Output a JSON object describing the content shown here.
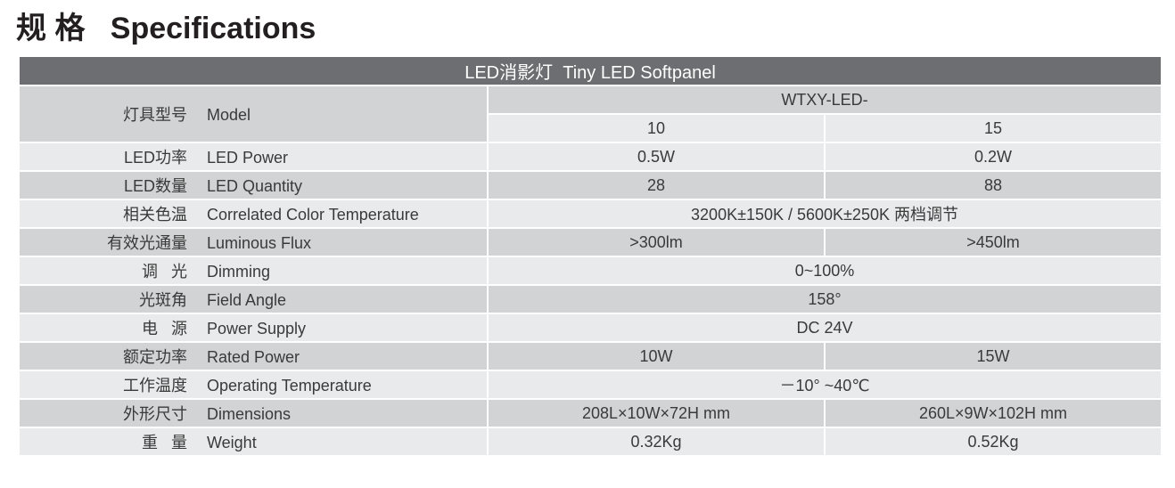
{
  "header": {
    "title": "规 格   Specifications"
  },
  "table": {
    "caption": "LED消影灯  Tiny LED Softpanel",
    "model": {
      "zh": "灯具型号",
      "en": "Model",
      "value": "WTXY-LED-",
      "variants": [
        "10",
        "15"
      ]
    },
    "rows": [
      {
        "zh": "LED功率",
        "en": "LED Power",
        "values": [
          "0.5W",
          "0.2W"
        ]
      },
      {
        "zh": "LED数量",
        "en": "LED Quantity",
        "values": [
          "28",
          "88"
        ]
      },
      {
        "zh": "相关色温",
        "en": "Correlated Color Temperature",
        "values": [
          "3200K±150K / 5600K±250K 两档调节"
        ]
      },
      {
        "zh": "有效光通量",
        "en": "Luminous Flux",
        "values": [
          ">300lm",
          ">450lm"
        ]
      },
      {
        "zh": "调   光",
        "en": "Dimming",
        "values": [
          "0~100%"
        ]
      },
      {
        "zh": "光斑角",
        "en": "Field Angle",
        "values": [
          "158°"
        ]
      },
      {
        "zh": "电   源",
        "en": "Power Supply",
        "values": [
          "DC 24V"
        ]
      },
      {
        "zh": "额定功率",
        "en": "Rated Power",
        "values": [
          "10W",
          "15W"
        ]
      },
      {
        "zh": "工作温度",
        "en": "Operating Temperature",
        "values": [
          "－10° ~40℃"
        ]
      },
      {
        "zh": "外形尺寸",
        "en": "Dimensions",
        "values": [
          "208L×10W×72H mm",
          "260L×9W×102H mm"
        ]
      },
      {
        "zh": "重   量",
        "en": "Weight",
        "values": [
          "0.32Kg",
          "0.52Kg"
        ]
      }
    ]
  }
}
